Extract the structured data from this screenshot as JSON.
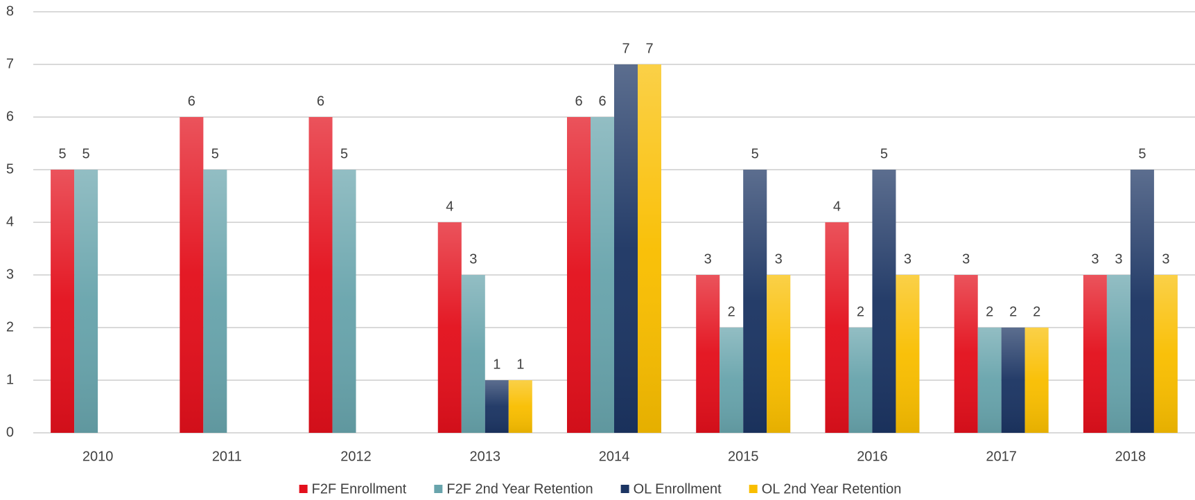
{
  "chart_data": {
    "type": "bar",
    "categories": [
      "2010",
      "2011",
      "2012",
      "2013",
      "2014",
      "2015",
      "2016",
      "2017",
      "2018"
    ],
    "series": [
      {
        "name": "F2F Enrollment",
        "color": "#e3101c",
        "values": [
          5,
          6,
          6,
          4,
          6,
          3,
          4,
          3,
          3
        ]
      },
      {
        "name": "F2F 2nd Year Retention",
        "color": "#68a4ac",
        "values": [
          5,
          5,
          5,
          3,
          6,
          2,
          2,
          2,
          3
        ]
      },
      {
        "name": "OL Enrollment",
        "color": "#1c3563",
        "values": [
          null,
          null,
          null,
          1,
          7,
          5,
          5,
          2,
          5
        ]
      },
      {
        "name": "OL 2nd Year Retention",
        "color": "#f9be00",
        "values": [
          null,
          null,
          null,
          1,
          7,
          3,
          3,
          2,
          3
        ]
      }
    ],
    "ylim": [
      0,
      8
    ],
    "yticks": [
      0,
      1,
      2,
      3,
      4,
      5,
      6,
      7,
      8
    ],
    "grid": true,
    "legend": "bottom",
    "data_labels": true
  }
}
